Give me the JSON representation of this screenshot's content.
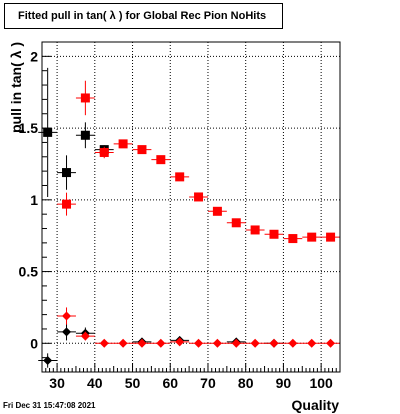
{
  "footer": {
    "timestamp": "Fri Dec 31 15:47:08 2021"
  },
  "chart_data": {
    "type": "scatter",
    "title": "Fitted pull in tan( λ ) for Global Rec Pion NoHits",
    "xlabel": "Quality",
    "ylabel": "pull in tan( λ )",
    "xlim": [
      26,
      105
    ],
    "ylim": [
      -0.2,
      2.1
    ],
    "x_ticks": [
      30,
      40,
      50,
      60,
      70,
      80,
      90,
      100
    ],
    "y_ticks": [
      0,
      0.5,
      1,
      1.5,
      2
    ],
    "y_tick_labels": [
      "0",
      "0.5",
      "1",
      "1.5",
      "2"
    ],
    "grid": true,
    "colors": {
      "black_series": "#000000",
      "red_series": "#ff0000",
      "error_red": "#ff0000"
    },
    "series": [
      {
        "marker": "square",
        "color": "#000000",
        "points": [
          {
            "x": 27.5,
            "y": 1.47,
            "err": 0.45
          },
          {
            "x": 32.5,
            "y": 1.19,
            "err": 0.12
          },
          {
            "x": 37.5,
            "y": 1.45,
            "err": 0.09
          },
          {
            "x": 42.5,
            "y": 1.35,
            "err": 0.03
          }
        ]
      },
      {
        "marker": "square",
        "color": "#ff0000",
        "points": [
          {
            "x": 32.5,
            "y": 0.97,
            "err": 0.08
          },
          {
            "x": 37.5,
            "y": 1.71,
            "err": 0.12
          },
          {
            "x": 42.5,
            "y": 1.33,
            "err": 0.04
          },
          {
            "x": 47.5,
            "y": 1.39,
            "err": 0.02
          },
          {
            "x": 52.5,
            "y": 1.35,
            "err": 0.02
          },
          {
            "x": 57.5,
            "y": 1.28,
            "err": 0.01
          },
          {
            "x": 62.5,
            "y": 1.16,
            "err": 0.01
          },
          {
            "x": 67.5,
            "y": 1.02,
            "err": 0.01
          },
          {
            "x": 72.5,
            "y": 0.92,
            "err": 0.01
          },
          {
            "x": 77.5,
            "y": 0.84,
            "err": 0.01
          },
          {
            "x": 82.5,
            "y": 0.79,
            "err": 0.01
          },
          {
            "x": 87.5,
            "y": 0.76,
            "err": 0.01
          },
          {
            "x": 92.5,
            "y": 0.73,
            "err": 0.01
          },
          {
            "x": 97.5,
            "y": 0.74,
            "err": 0.01
          },
          {
            "x": 102.5,
            "y": 0.74,
            "err": 0.01
          }
        ]
      },
      {
        "marker": "diamond",
        "color": "#000000",
        "points": [
          {
            "x": 27.5,
            "y": -0.12,
            "err": 0.05
          },
          {
            "x": 32.5,
            "y": 0.08,
            "err": 0.06
          },
          {
            "x": 37.5,
            "y": 0.07,
            "err": 0.04
          },
          {
            "x": 52.5,
            "y": 0.01,
            "err": 0.01
          },
          {
            "x": 62.5,
            "y": 0.02,
            "err": 0.01
          },
          {
            "x": 77.5,
            "y": 0.01,
            "err": 0.01
          },
          {
            "x": 87.5,
            "y": 0.0,
            "err": 0.01
          }
        ]
      },
      {
        "marker": "diamond",
        "color": "#ff0000",
        "points": [
          {
            "x": 32.5,
            "y": 0.19,
            "err": 0.06
          },
          {
            "x": 37.5,
            "y": 0.05,
            "err": 0.03
          },
          {
            "x": 42.5,
            "y": 0.0,
            "err": 0.01
          },
          {
            "x": 47.5,
            "y": 0.0,
            "err": 0.01
          },
          {
            "x": 52.5,
            "y": 0.0,
            "err": 0.01
          },
          {
            "x": 57.5,
            "y": 0.0,
            "err": 0.01
          },
          {
            "x": 62.5,
            "y": 0.01,
            "err": 0.01
          },
          {
            "x": 67.5,
            "y": 0.0,
            "err": 0.01
          },
          {
            "x": 72.5,
            "y": 0.0,
            "err": 0.01
          },
          {
            "x": 77.5,
            "y": 0.0,
            "err": 0.01
          },
          {
            "x": 82.5,
            "y": 0.0,
            "err": 0.01
          },
          {
            "x": 87.5,
            "y": 0.0,
            "err": 0.01
          },
          {
            "x": 92.5,
            "y": 0.0,
            "err": 0.01
          },
          {
            "x": 97.5,
            "y": 0.0,
            "err": 0.01
          },
          {
            "x": 102.5,
            "y": 0.0,
            "err": 0.01
          }
        ]
      }
    ]
  }
}
